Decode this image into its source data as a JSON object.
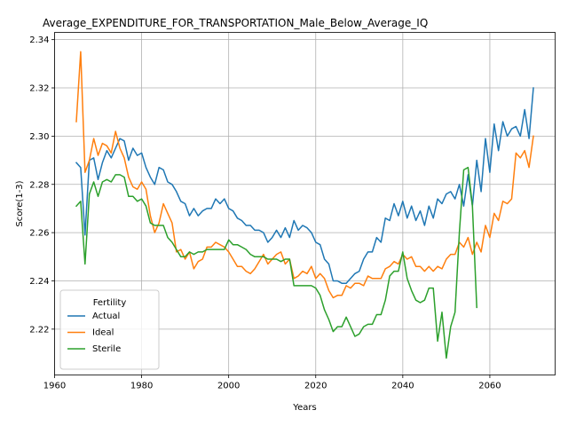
{
  "chart_data": {
    "type": "line",
    "title": "Average_EXPENDITURE_FOR_TRANSPORTATION_Male_Below_Average_IQ",
    "xlabel": "Years",
    "ylabel": "Score(1-3)",
    "xlim": [
      1960,
      2075
    ],
    "ylim": [
      2.201,
      2.343
    ],
    "xticks": [
      1960,
      1980,
      2000,
      2020,
      2040,
      2060
    ],
    "yticks": [
      2.22,
      2.24,
      2.26,
      2.28,
      2.3,
      2.32,
      2.34
    ],
    "ytick_labels": [
      "2.22",
      "2.24",
      "2.26",
      "2.28",
      "2.30",
      "2.32",
      "2.34"
    ],
    "grid": true,
    "legend": {
      "title": "Fertility",
      "placement": "lower-left"
    },
    "series": [
      {
        "name": "Actual",
        "color": "#1f77b4",
        "x": [
          1965,
          1966,
          1967,
          1968,
          1969,
          1970,
          1971,
          1972,
          1973,
          1974,
          1975,
          1976,
          1977,
          1978,
          1979,
          1980,
          1981,
          1982,
          1983,
          1984,
          1985,
          1986,
          1987,
          1988,
          1989,
          1990,
          1991,
          1992,
          1993,
          1994,
          1995,
          1996,
          1997,
          1998,
          1999,
          2000,
          2001,
          2002,
          2003,
          2004,
          2005,
          2006,
          2007,
          2008,
          2009,
          2010,
          2011,
          2012,
          2013,
          2014,
          2015,
          2016,
          2017,
          2018,
          2019,
          2020,
          2021,
          2022,
          2023,
          2024,
          2025,
          2026,
          2027,
          2028,
          2029,
          2030,
          2031,
          2032,
          2033,
          2034,
          2035,
          2036,
          2037,
          2038,
          2039,
          2040,
          2041,
          2042,
          2043,
          2044,
          2045,
          2046,
          2047,
          2048,
          2049,
          2050,
          2051,
          2052,
          2053,
          2054,
          2055,
          2056,
          2057,
          2058,
          2059,
          2060,
          2061,
          2062,
          2063,
          2064,
          2065,
          2066,
          2067,
          2068,
          2069,
          2070
        ],
        "values": [
          2.289,
          2.287,
          2.259,
          2.29,
          2.291,
          2.282,
          2.289,
          2.294,
          2.291,
          2.295,
          2.299,
          2.298,
          2.29,
          2.295,
          2.292,
          2.293,
          2.287,
          2.283,
          2.28,
          2.287,
          2.286,
          2.281,
          2.28,
          2.277,
          2.273,
          2.272,
          2.267,
          2.27,
          2.267,
          2.269,
          2.27,
          2.27,
          2.274,
          2.272,
          2.274,
          2.27,
          2.269,
          2.266,
          2.265,
          2.263,
          2.263,
          2.261,
          2.261,
          2.26,
          2.256,
          2.258,
          2.261,
          2.258,
          2.262,
          2.258,
          2.265,
          2.261,
          2.263,
          2.262,
          2.26,
          2.256,
          2.255,
          2.249,
          2.247,
          2.24,
          2.24,
          2.239,
          2.239,
          2.241,
          2.243,
          2.244,
          2.249,
          2.252,
          2.252,
          2.258,
          2.256,
          2.266,
          2.265,
          2.272,
          2.267,
          2.273,
          2.266,
          2.271,
          2.265,
          2.269,
          2.263,
          2.271,
          2.266,
          2.274,
          2.272,
          2.276,
          2.277,
          2.274,
          2.28,
          2.271,
          2.284,
          2.271,
          2.29,
          2.277,
          2.299,
          2.285,
          2.305,
          2.294,
          2.306,
          2.3,
          2.303,
          2.304,
          2.3,
          2.311,
          2.299,
          2.32
        ]
      },
      {
        "name": "Ideal",
        "color": "#ff7f0e",
        "x": [
          1965,
          1966,
          1967,
          1968,
          1969,
          1970,
          1971,
          1972,
          1973,
          1974,
          1975,
          1976,
          1977,
          1978,
          1979,
          1980,
          1981,
          1982,
          1983,
          1984,
          1985,
          1986,
          1987,
          1988,
          1989,
          1990,
          1991,
          1992,
          1993,
          1994,
          1995,
          1996,
          1997,
          1998,
          1999,
          2000,
          2001,
          2002,
          2003,
          2004,
          2005,
          2006,
          2007,
          2008,
          2009,
          2010,
          2011,
          2012,
          2013,
          2014,
          2015,
          2016,
          2017,
          2018,
          2019,
          2020,
          2021,
          2022,
          2023,
          2024,
          2025,
          2026,
          2027,
          2028,
          2029,
          2030,
          2031,
          2032,
          2033,
          2034,
          2035,
          2036,
          2037,
          2038,
          2039,
          2040,
          2041,
          2042,
          2043,
          2044,
          2045,
          2046,
          2047,
          2048,
          2049,
          2050,
          2051,
          2052,
          2053,
          2054,
          2055,
          2056,
          2057,
          2058,
          2059,
          2060,
          2061,
          2062,
          2063,
          2064,
          2065,
          2066,
          2067,
          2068,
          2069,
          2070
        ],
        "values": [
          2.306,
          2.335,
          2.285,
          2.29,
          2.299,
          2.292,
          2.297,
          2.296,
          2.293,
          2.302,
          2.295,
          2.291,
          2.283,
          2.279,
          2.278,
          2.281,
          2.278,
          2.267,
          2.26,
          2.264,
          2.272,
          2.268,
          2.264,
          2.252,
          2.253,
          2.249,
          2.252,
          2.245,
          2.248,
          2.249,
          2.254,
          2.254,
          2.256,
          2.255,
          2.254,
          2.252,
          2.249,
          2.246,
          2.246,
          2.244,
          2.243,
          2.245,
          2.248,
          2.251,
          2.247,
          2.249,
          2.251,
          2.252,
          2.247,
          2.249,
          2.241,
          2.242,
          2.244,
          2.243,
          2.246,
          2.241,
          2.243,
          2.241,
          2.236,
          2.233,
          2.234,
          2.234,
          2.238,
          2.237,
          2.239,
          2.239,
          2.238,
          2.242,
          2.241,
          2.241,
          2.241,
          2.245,
          2.246,
          2.248,
          2.247,
          2.251,
          2.249,
          2.25,
          2.246,
          2.246,
          2.244,
          2.246,
          2.244,
          2.246,
          2.245,
          2.249,
          2.251,
          2.251,
          2.256,
          2.254,
          2.258,
          2.251,
          2.256,
          2.252,
          2.263,
          2.258,
          2.268,
          2.265,
          2.273,
          2.272,
          2.274,
          2.293,
          2.291,
          2.294,
          2.287,
          2.3
        ]
      },
      {
        "name": "Sterile",
        "color": "#2ca02c",
        "x": [
          1965,
          1966,
          1967,
          1968,
          1969,
          1970,
          1971,
          1972,
          1973,
          1974,
          1975,
          1976,
          1977,
          1978,
          1979,
          1980,
          1981,
          1982,
          1983,
          1984,
          1985,
          1986,
          1987,
          1988,
          1989,
          1990,
          1991,
          1992,
          1993,
          1994,
          1995,
          1996,
          1997,
          1998,
          1999,
          2000,
          2001,
          2002,
          2003,
          2004,
          2005,
          2006,
          2007,
          2008,
          2009,
          2010,
          2011,
          2012,
          2013,
          2014,
          2015,
          2016,
          2017,
          2018,
          2019,
          2020,
          2021,
          2022,
          2023,
          2024,
          2025,
          2026,
          2027,
          2028,
          2029,
          2030,
          2031,
          2032,
          2033,
          2034,
          2035,
          2036,
          2037,
          2038,
          2039,
          2040,
          2041,
          2042,
          2043,
          2044,
          2045,
          2046,
          2047,
          2048,
          2049,
          2050,
          2051,
          2052,
          2053,
          2054,
          2055,
          2056,
          2057
        ],
        "values": [
          2.271,
          2.273,
          2.247,
          2.276,
          2.281,
          2.275,
          2.281,
          2.282,
          2.281,
          2.284,
          2.284,
          2.283,
          2.275,
          2.275,
          2.273,
          2.274,
          2.271,
          2.264,
          2.263,
          2.263,
          2.263,
          2.258,
          2.256,
          2.253,
          2.25,
          2.25,
          2.252,
          2.251,
          2.252,
          2.252,
          2.253,
          2.253,
          2.253,
          2.253,
          2.253,
          2.257,
          2.255,
          2.255,
          2.254,
          2.253,
          2.251,
          2.25,
          2.25,
          2.25,
          2.249,
          2.249,
          2.249,
          2.248,
          2.249,
          2.249,
          2.238,
          2.238,
          2.238,
          2.238,
          2.238,
          2.237,
          2.234,
          2.228,
          2.224,
          2.219,
          2.221,
          2.221,
          2.225,
          2.221,
          2.217,
          2.218,
          2.221,
          2.222,
          2.222,
          2.226,
          2.226,
          2.232,
          2.242,
          2.244,
          2.244,
          2.252,
          2.241,
          2.236,
          2.232,
          2.231,
          2.232,
          2.237,
          2.237,
          2.215,
          2.227,
          2.208,
          2.221,
          2.227,
          2.26,
          2.286,
          2.287,
          2.271,
          2.229
        ]
      }
    ]
  }
}
